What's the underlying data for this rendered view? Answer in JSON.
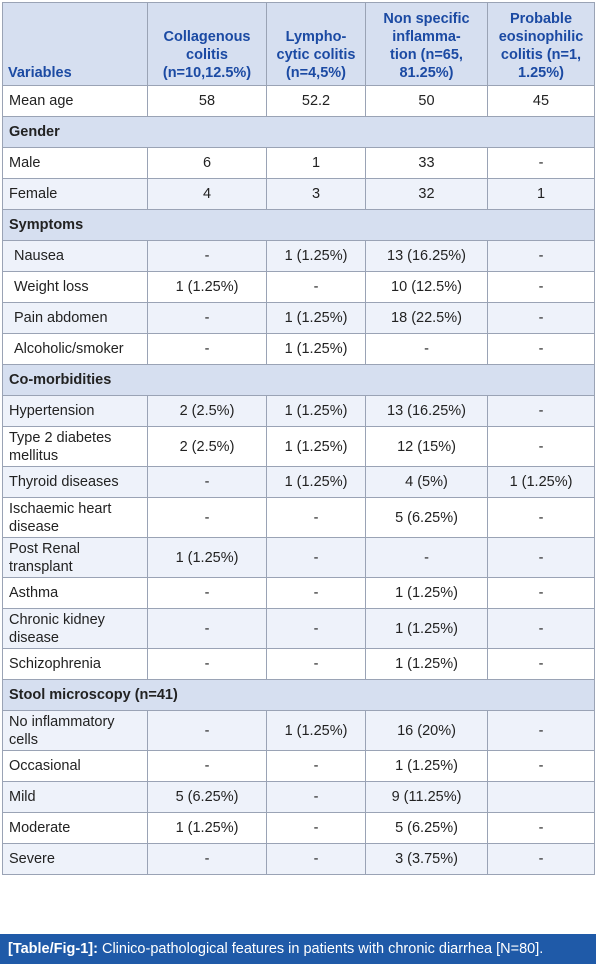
{
  "headers": {
    "variables": "Variables",
    "col1": [
      "Collagenous",
      "colitis",
      "(n=10,12.5%)"
    ],
    "col2": [
      "Lympho-",
      "cytic colitis",
      "(n=4,5%)"
    ],
    "col3": [
      "Non specific",
      "inflamma-",
      "tion (n=65,",
      "81.25%)"
    ],
    "col4": [
      "Probable",
      "eosinophilic",
      "colitis (n=1,",
      "1.25%)"
    ]
  },
  "rows": {
    "mean_age": [
      "Mean age",
      "58",
      "52.2",
      "50",
      "45"
    ],
    "gender": "Gender",
    "male": [
      "Male",
      "6",
      "1",
      "33",
      "-"
    ],
    "female": [
      "Female",
      "4",
      "3",
      "32",
      "1"
    ],
    "symptoms": "Symptoms",
    "nausea": [
      "Nausea",
      "-",
      "1 (1.25%)",
      "13 (16.25%)",
      "-"
    ],
    "weight_loss": [
      "Weight loss",
      "1 (1.25%)",
      "-",
      "10 (12.5%)",
      "-"
    ],
    "pain_abdomen": [
      "Pain abdomen",
      "-",
      "1 (1.25%)",
      "18 (22.5%)",
      "-"
    ],
    "alcoholic": [
      "Alcoholic/smoker",
      "-",
      "1 (1.25%)",
      "-",
      "-"
    ],
    "comorbidities": "Co-morbidities",
    "hypertension": [
      "Hypertension",
      "2 (2.5%)",
      "1 (1.25%)",
      "13 (16.25%)",
      "-"
    ],
    "diabetes": [
      "Type 2 diabetes",
      "mellitus",
      "2 (2.5%)",
      "1 (1.25%)",
      "12 (15%)",
      "-"
    ],
    "thyroid": [
      "Thyroid diseases",
      "-",
      "1 (1.25%)",
      "4 (5%)",
      "1 (1.25%)"
    ],
    "ischaemic": [
      "Ischaemic heart",
      "disease",
      "-",
      "-",
      "5 (6.25%)",
      "-"
    ],
    "renal": [
      "Post Renal",
      "transplant",
      "1 (1.25%)",
      "-",
      "-",
      "-"
    ],
    "asthma": [
      "Asthma",
      "-",
      "-",
      "1 (1.25%)",
      "-"
    ],
    "ckd": [
      "Chronic kidney",
      "disease",
      "-",
      "-",
      "1 (1.25%)",
      "-"
    ],
    "schizo": [
      "Schizophrenia",
      "-",
      "-",
      "1 (1.25%)",
      "-"
    ],
    "stool": "Stool microscopy (n=41)",
    "no_inflam": [
      "No inflammatory",
      "cells",
      "-",
      "1 (1.25%)",
      "16 (20%)",
      "-"
    ],
    "occasional": [
      "Occasional",
      "-",
      "-",
      "1 (1.25%)",
      "-"
    ],
    "mild": [
      "Mild",
      "5 (6.25%)",
      "-",
      "9 (11.25%)",
      ""
    ],
    "moderate": [
      "Moderate",
      "1 (1.25%)",
      "-",
      "5 (6.25%)",
      "-"
    ],
    "severe": [
      "Severe",
      "-",
      "-",
      "3 (3.75%)",
      "-"
    ]
  },
  "caption": {
    "label": "[Table/Fig-1]:",
    "text": " Clinico-pathological features in patients with chronic diarrhea [N=80]."
  }
}
